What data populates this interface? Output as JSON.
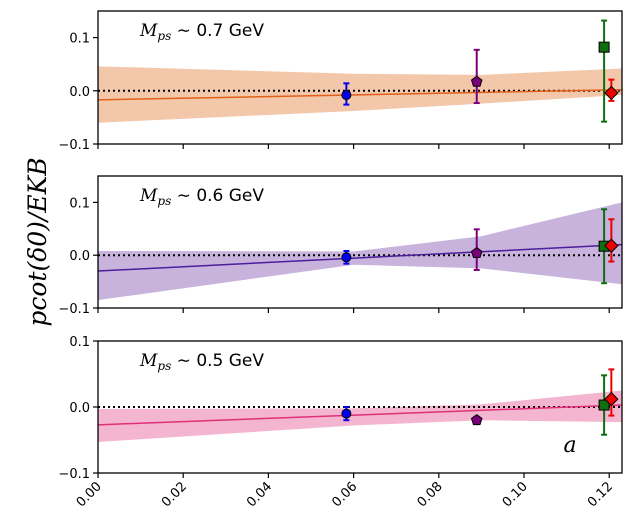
{
  "chart_data": {
    "type": "line",
    "ylabel": "pcot(δ0)/EKB",
    "corner_label": "a",
    "xlim": [
      0.0,
      0.123
    ],
    "xticks": [
      "0.00",
      "0.02",
      "0.04",
      "0.06",
      "0.08",
      "0.10",
      "0.12"
    ],
    "marker_colors": {
      "circle": "#0000ee",
      "pentagon": "#7a007a",
      "square": "#0f6e0f",
      "diamond": "#ee0000"
    },
    "panels": [
      {
        "label_math": "M",
        "label_sub": "ps",
        "label_text": " ∼ 0.7 GeV",
        "ylim": [
          -0.1,
          0.15
        ],
        "yticks": [
          "0.1",
          "0.0",
          "−0.1"
        ],
        "ytick_values": [
          0.1,
          0.0,
          -0.1
        ],
        "band_color": "#f3c7aa",
        "line_color": "#e0601a",
        "fit_line": [
          [
            0.0,
            -0.017
          ],
          [
            0.123,
            0.002
          ]
        ],
        "band_upper": [
          [
            0.0,
            0.046
          ],
          [
            0.06,
            0.032
          ],
          [
            0.09,
            0.03
          ],
          [
            0.123,
            0.042
          ]
        ],
        "band_lower": [
          [
            0.0,
            -0.06
          ],
          [
            0.06,
            -0.038
          ],
          [
            0.09,
            -0.024
          ],
          [
            0.123,
            -0.008
          ]
        ],
        "points": [
          {
            "marker": "circle",
            "x": 0.0583,
            "y": -0.008,
            "yerr": [
              0.018,
              0.022
            ]
          },
          {
            "marker": "pentagon",
            "x": 0.0889,
            "y": 0.017,
            "yerr": [
              0.04,
              0.06
            ]
          },
          {
            "marker": "square",
            "x": 0.1188,
            "y": 0.082,
            "yerr": [
              0.14,
              0.05
            ]
          },
          {
            "marker": "diamond",
            "x": 0.1205,
            "y": -0.004,
            "yerr": [
              0.015,
              0.025
            ]
          }
        ]
      },
      {
        "label_math": "M",
        "label_sub": "ps",
        "label_text": " ∼ 0.6 GeV",
        "ylim": [
          -0.1,
          0.15
        ],
        "yticks": [
          "0.1",
          "0.0",
          "−0.1"
        ],
        "ytick_values": [
          0.1,
          0.0,
          -0.1
        ],
        "band_color": "#c7b3dc",
        "line_color": "#4b1e9a",
        "fit_line": [
          [
            0.0,
            -0.03
          ],
          [
            0.123,
            0.02
          ]
        ],
        "band_upper": [
          [
            0.0,
            0.008
          ],
          [
            0.06,
            0.007
          ],
          [
            0.09,
            0.036
          ],
          [
            0.123,
            0.1
          ]
        ],
        "band_lower": [
          [
            0.0,
            -0.085
          ],
          [
            0.06,
            -0.018
          ],
          [
            0.09,
            -0.025
          ],
          [
            0.123,
            -0.055
          ]
        ],
        "points": [
          {
            "marker": "circle",
            "x": 0.0583,
            "y": -0.004,
            "yerr": [
              0.012,
              0.012
            ]
          },
          {
            "marker": "pentagon",
            "x": 0.0889,
            "y": 0.004,
            "yerr": [
              0.032,
              0.045
            ]
          },
          {
            "marker": "square",
            "x": 0.1188,
            "y": 0.017,
            "yerr": [
              0.07,
              0.07
            ]
          },
          {
            "marker": "diamond",
            "x": 0.1205,
            "y": 0.018,
            "yerr": [
              0.03,
              0.05
            ]
          }
        ]
      },
      {
        "label_math": "M",
        "label_sub": "ps",
        "label_text": " ∼ 0.5 GeV",
        "ylim": [
          -0.1,
          0.1
        ],
        "yticks": [
          "0.1",
          "0.0",
          "−0.1"
        ],
        "ytick_values": [
          0.1,
          0.0,
          -0.1
        ],
        "band_color": "#f4b5d0",
        "line_color": "#e0307a",
        "fit_line": [
          [
            0.0,
            -0.027
          ],
          [
            0.123,
            0.003
          ]
        ],
        "band_upper": [
          [
            0.0,
            -0.003
          ],
          [
            0.06,
            -0.002
          ],
          [
            0.09,
            0.004
          ],
          [
            0.123,
            0.025
          ]
        ],
        "band_lower": [
          [
            0.0,
            -0.053
          ],
          [
            0.06,
            -0.028
          ],
          [
            0.09,
            -0.02
          ],
          [
            0.123,
            -0.023
          ]
        ],
        "points": [
          {
            "marker": "circle",
            "x": 0.0583,
            "y": -0.01,
            "yerr": [
              0.01,
              0.01
            ]
          },
          {
            "marker": "pentagon",
            "x": 0.0889,
            "y": -0.02,
            "yerr": [
              0.005,
              0.005
            ]
          },
          {
            "marker": "square",
            "x": 0.1188,
            "y": 0.003,
            "yerr": [
              0.045,
              0.045
            ]
          },
          {
            "marker": "diamond",
            "x": 0.1205,
            "y": 0.012,
            "yerr": [
              0.025,
              0.045
            ]
          }
        ]
      }
    ]
  }
}
